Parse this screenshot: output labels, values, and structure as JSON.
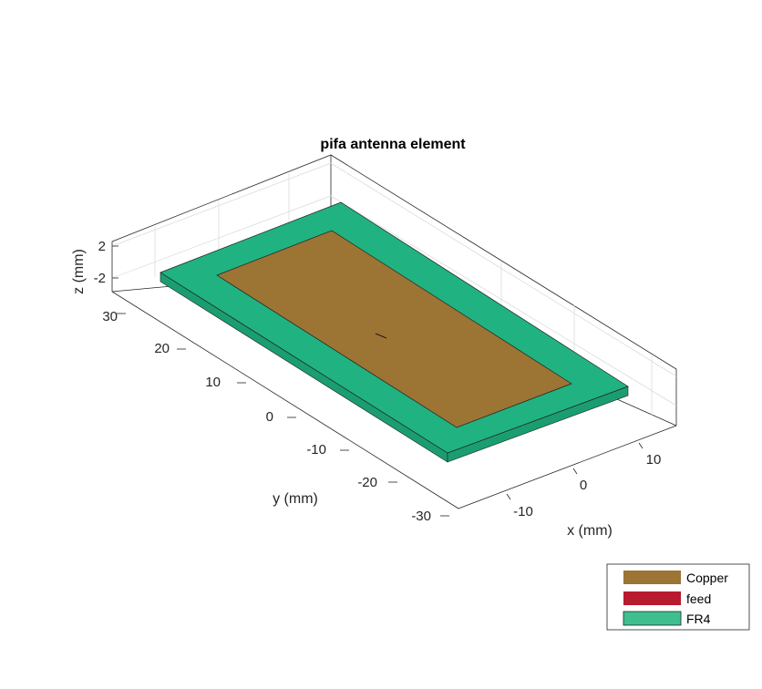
{
  "figure": {
    "title": "pifa antenna element",
    "xlabel": "x (mm)",
    "ylabel": "y (mm)",
    "zlabel": "z (mm)",
    "x_ticks": [
      "-10",
      "0",
      "10"
    ],
    "y_ticks": [
      "30",
      "20",
      "10",
      "0",
      "-10",
      "-20",
      "-30"
    ],
    "z_ticks": [
      "2",
      "-2"
    ]
  },
  "legend": {
    "items": [
      {
        "label": "Copper",
        "color": "#9c7433"
      },
      {
        "label": "feed",
        "color": "#b81a2e"
      },
      {
        "label": "FR4",
        "color": "#3fbf8f"
      }
    ]
  },
  "colors": {
    "copper": "#9c7433",
    "fr4_top": "#21b281",
    "fr4_side": "#1a9e70",
    "feed": "#b81a2e"
  }
}
